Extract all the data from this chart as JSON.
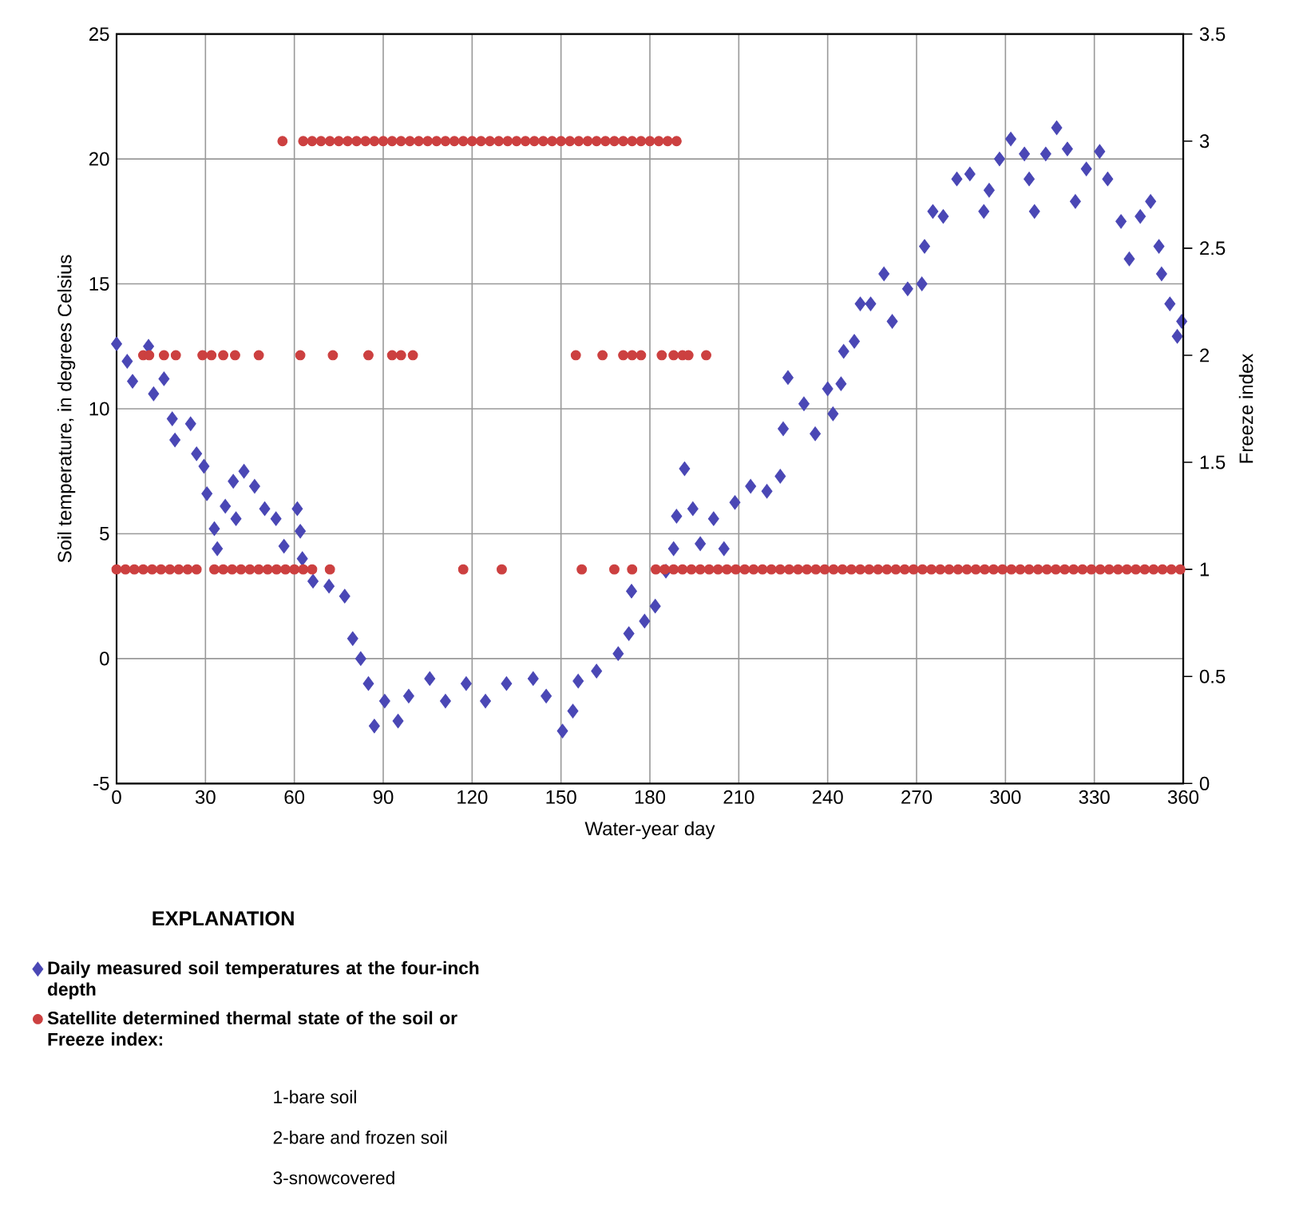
{
  "chart_data": {
    "type": "scatter",
    "xlabel": "Water-year day",
    "ylabel": "Soil temperature, in degrees Celsius",
    "y2label": "Freeze index",
    "legend_title": "EXPLANATION",
    "annotations": [
      "1-bare soil",
      "2-bare and frozen soil",
      "3-snowcovered"
    ],
    "xlim": [
      0,
      360
    ],
    "xticks": [
      0,
      30,
      60,
      90,
      120,
      150,
      180,
      210,
      240,
      270,
      300,
      330,
      360
    ],
    "ylim": [
      -5,
      25
    ],
    "yticks": [
      -5,
      0,
      5,
      10,
      15,
      20,
      25
    ],
    "y2lim": [
      0,
      3.5
    ],
    "y2ticks": [
      0,
      0.5,
      1,
      1.5,
      2,
      2.5,
      3,
      3.5
    ],
    "grid": true,
    "legend": "bottom left",
    "series": [
      {
        "name": "Daily measured soil temperatures at the four-inch depth",
        "color": "#4a47b5",
        "marker": "diamond",
        "x": [
          0,
          3.6,
          5.4,
          10.8,
          12.5,
          16,
          18.8,
          19.7,
          25,
          27,
          29.5,
          30.5,
          33,
          34,
          36.7,
          39.4,
          40.3,
          43,
          46.6,
          50,
          53.8,
          56.5,
          61,
          62,
          62.7,
          66.3,
          71.7,
          77,
          79.7,
          82.4,
          85,
          87,
          90.5,
          95,
          98.6,
          105.7,
          111,
          118,
          124.5,
          131.6,
          140.6,
          145,
          150.5,
          154,
          155.8,
          162,
          169.3,
          172.9,
          173.8,
          178.2,
          181.8,
          185.4,
          188,
          189,
          191.7,
          194.5,
          197,
          201.5,
          205,
          208.7,
          214,
          219.5,
          224,
          225,
          226.6,
          232,
          235.8,
          240,
          241.8,
          244.5,
          245.4,
          249,
          251,
          254.5,
          259,
          261.8,
          267,
          271.8,
          272.7,
          275.5,
          279,
          283.6,
          288,
          292.7,
          294.5,
          298,
          301.8,
          306.4,
          308,
          309.8,
          313.6,
          317.3,
          320.9,
          323.6,
          327.3,
          331.8,
          334.5,
          339,
          341.8,
          345.5,
          349,
          351.8,
          352.7,
          355.5,
          358,
          359.5
        ],
        "values": [
          12.6,
          11.9,
          11.1,
          12.5,
          10.6,
          11.2,
          9.6,
          8.75,
          9.4,
          8.2,
          7.7,
          6.6,
          5.2,
          4.4,
          6.1,
          7.1,
          5.6,
          7.5,
          6.9,
          6.0,
          5.6,
          4.5,
          6.0,
          5.1,
          4.0,
          3.1,
          2.9,
          2.5,
          0.8,
          0.0,
          -1.0,
          -2.7,
          -1.7,
          -2.5,
          -1.5,
          -0.8,
          -1.7,
          -1.0,
          -1.7,
          -1.0,
          -0.8,
          -1.5,
          -2.9,
          -2.1,
          -0.9,
          -0.5,
          0.2,
          1.0,
          2.7,
          1.5,
          2.1,
          3.5,
          4.4,
          5.7,
          7.6,
          6.0,
          4.6,
          5.6,
          4.4,
          6.25,
          6.9,
          6.7,
          7.3,
          9.2,
          11.25,
          10.2,
          9.0,
          10.8,
          9.8,
          11.0,
          12.3,
          12.7,
          14.2,
          14.2,
          15.4,
          13.5,
          14.8,
          15.0,
          16.5,
          17.9,
          17.7,
          19.2,
          19.4,
          17.9,
          18.75,
          20.0,
          20.8,
          20.2,
          19.2,
          17.9,
          20.2,
          21.25,
          20.4,
          18.3,
          19.6,
          20.3,
          19.2,
          17.5,
          16.0,
          17.7,
          18.3,
          16.5,
          15.4,
          14.2,
          12.9,
          13.5
        ]
      },
      {
        "name": "Satellite determined thermal state of the soil or Freeze index:",
        "color": "#cc4040",
        "marker": "circle",
        "axis": "y2",
        "x": [
          0,
          3,
          6,
          9,
          12,
          15,
          18,
          21,
          24,
          27,
          33,
          36,
          39,
          42,
          45,
          48,
          51,
          54,
          57,
          60,
          63,
          66,
          72,
          117,
          130,
          157,
          168,
          174,
          182,
          185,
          188,
          191,
          194,
          197,
          200,
          203,
          206,
          209,
          212,
          215,
          218,
          221,
          224,
          227,
          230,
          233,
          236,
          239,
          242,
          245,
          248,
          251,
          254,
          257,
          260,
          263,
          266,
          269,
          272,
          275,
          278,
          281,
          284,
          287,
          290,
          293,
          296,
          299,
          302,
          305,
          308,
          311,
          314,
          317,
          320,
          323,
          326,
          329,
          332,
          335,
          338,
          341,
          344,
          347,
          350,
          353,
          356,
          359,
          9,
          11,
          16,
          20,
          29,
          32,
          36,
          40,
          48,
          62,
          73,
          85,
          93,
          96,
          100,
          155,
          164,
          171,
          174,
          177,
          184,
          188,
          191,
          193,
          199,
          56,
          63,
          66,
          69,
          72,
          75,
          78,
          81,
          84,
          87,
          90,
          93,
          96,
          99,
          102,
          105,
          108,
          111,
          114,
          117,
          120,
          123,
          126,
          129,
          132,
          135,
          138,
          141,
          144,
          147,
          150,
          153,
          156,
          159,
          162,
          165,
          168,
          171,
          174,
          177,
          180,
          183,
          186,
          189
        ],
        "values": [
          1,
          1,
          1,
          1,
          1,
          1,
          1,
          1,
          1,
          1,
          1,
          1,
          1,
          1,
          1,
          1,
          1,
          1,
          1,
          1,
          1,
          1,
          1,
          1,
          1,
          1,
          1,
          1,
          1,
          1,
          1,
          1,
          1,
          1,
          1,
          1,
          1,
          1,
          1,
          1,
          1,
          1,
          1,
          1,
          1,
          1,
          1,
          1,
          1,
          1,
          1,
          1,
          1,
          1,
          1,
          1,
          1,
          1,
          1,
          1,
          1,
          1,
          1,
          1,
          1,
          1,
          1,
          1,
          1,
          1,
          1,
          1,
          1,
          1,
          1,
          1,
          1,
          1,
          1,
          1,
          1,
          1,
          1,
          1,
          1,
          1,
          1,
          1,
          2,
          2,
          2,
          2,
          2,
          2,
          2,
          2,
          2,
          2,
          2,
          2,
          2,
          2,
          2,
          2,
          2,
          2,
          2,
          2,
          2,
          2,
          2,
          2,
          2,
          3,
          3,
          3,
          3,
          3,
          3,
          3,
          3,
          3,
          3,
          3,
          3,
          3,
          3,
          3,
          3,
          3,
          3,
          3,
          3,
          3,
          3,
          3,
          3,
          3,
          3,
          3,
          3,
          3,
          3,
          3,
          3,
          3,
          3,
          3,
          3,
          3,
          3,
          3,
          3,
          3,
          3,
          3,
          3
        ]
      }
    ]
  }
}
